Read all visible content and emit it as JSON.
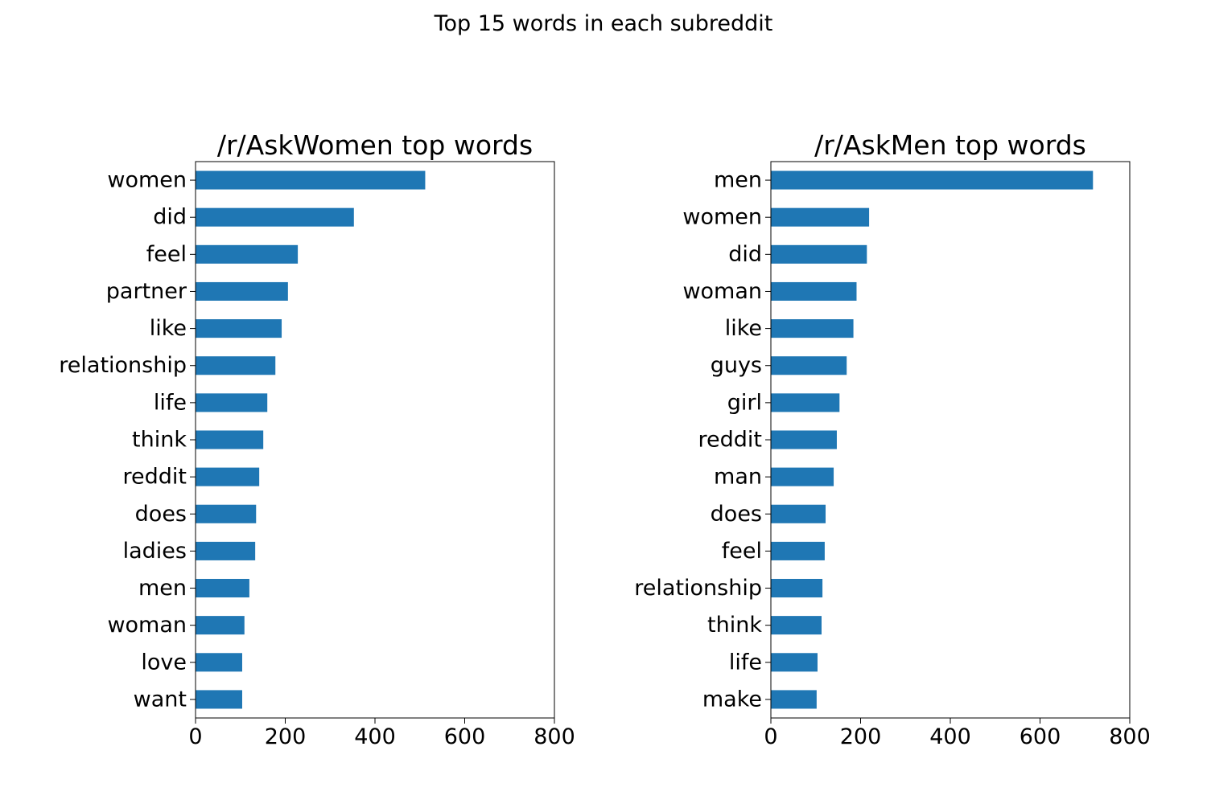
{
  "figure": {
    "suptitle": "Top 15 words in each subreddit"
  },
  "chart_data": [
    {
      "type": "bar",
      "orientation": "horizontal",
      "title": "/r/AskWomen top words",
      "xlabel": "",
      "ylabel": "",
      "xlim": [
        0,
        800
      ],
      "xticks": [
        0,
        200,
        400,
        600,
        800
      ],
      "grid": false,
      "bar_color": "#1f77b4",
      "categories": [
        "women",
        "did",
        "feel",
        "partner",
        "like",
        "relationship",
        "life",
        "think",
        "reddit",
        "does",
        "ladies",
        "men",
        "woman",
        "love",
        "want"
      ],
      "values": [
        512,
        353,
        228,
        206,
        192,
        178,
        160,
        151,
        142,
        135,
        133,
        120,
        109,
        104,
        104
      ]
    },
    {
      "type": "bar",
      "orientation": "horizontal",
      "title": "/r/AskMen top words",
      "xlabel": "",
      "ylabel": "",
      "xlim": [
        0,
        800
      ],
      "xticks": [
        0,
        200,
        400,
        600,
        800
      ],
      "grid": false,
      "bar_color": "#1f77b4",
      "categories": [
        "men",
        "women",
        "did",
        "woman",
        "like",
        "guys",
        "girl",
        "reddit",
        "man",
        "does",
        "feel",
        "relationship",
        "think",
        "life",
        "make"
      ],
      "values": [
        718,
        219,
        214,
        191,
        184,
        169,
        153,
        147,
        140,
        122,
        120,
        115,
        113,
        104,
        102
      ]
    }
  ]
}
